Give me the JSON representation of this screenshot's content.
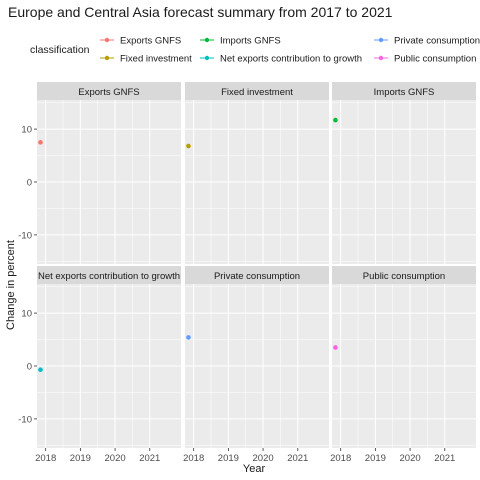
{
  "chart_data": {
    "type": "scatter",
    "title": "Europe and Central Asia forecast summary from 2017 to 2021",
    "xlabel": "Year",
    "ylabel": "Change in percent",
    "legend_title": "classification",
    "legend_position": "top",
    "x_ticks": [
      2018,
      2019,
      2020,
      2021
    ],
    "xlim": [
      2017.75,
      2021.9
    ],
    "y_ticks": [
      -10,
      0,
      10
    ],
    "ylim": [
      -15.5,
      15.5
    ],
    "grid": true,
    "facets": [
      {
        "name": "Exports  GNFS",
        "color": "#F8766D",
        "points": [
          {
            "x": 2017.85,
            "y": 7.5
          }
        ]
      },
      {
        "name": "Fixed investment",
        "color": "#B79F00",
        "points": [
          {
            "x": 2017.85,
            "y": 6.8
          }
        ]
      },
      {
        "name": "Imports  GNFS",
        "color": "#00BA38",
        "points": [
          {
            "x": 2017.85,
            "y": 11.7
          }
        ]
      },
      {
        "name": "Net exports  contribution to growth",
        "color": "#00BFC4",
        "points": [
          {
            "x": 2017.85,
            "y": -0.7
          }
        ]
      },
      {
        "name": "Private consumption",
        "color": "#619CFF",
        "points": [
          {
            "x": 2017.85,
            "y": 5.4
          }
        ]
      },
      {
        "name": "Public consumption",
        "color": "#F564E3",
        "points": [
          {
            "x": 2017.85,
            "y": 3.5
          }
        ]
      }
    ]
  }
}
